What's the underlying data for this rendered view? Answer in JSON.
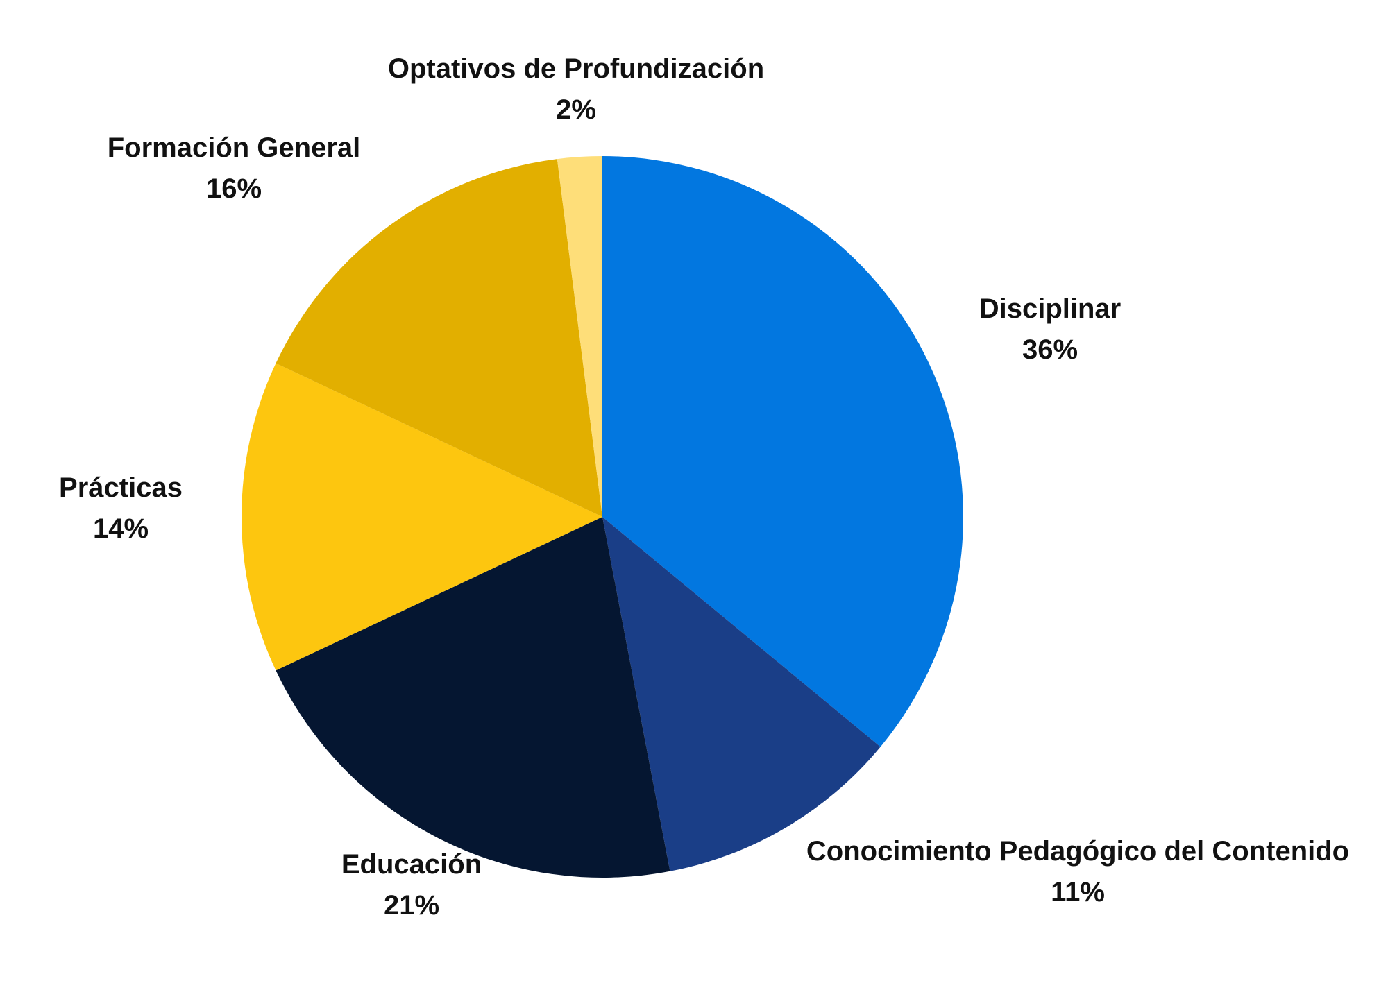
{
  "chart_data": {
    "type": "pie",
    "title": "",
    "start_angle_deg": 0,
    "direction": "clockwise",
    "slices": [
      {
        "label": "Disciplinar",
        "value": 36,
        "display": "36%",
        "color": "#0277E0"
      },
      {
        "label": "Conocimiento Pedagógico del Contenido",
        "value": 11,
        "display": "11%",
        "color": "#1A3E87"
      },
      {
        "label": "Educación",
        "value": 21,
        "display": "21%",
        "color": "#051631"
      },
      {
        "label": "Prácticas",
        "value": 14,
        "display": "14%",
        "color": "#FDC60F"
      },
      {
        "label": "Formación General",
        "value": 16,
        "display": "16%",
        "color": "#E2AF00"
      },
      {
        "label": "Optativos de Profundización",
        "value": 2,
        "display": "2%",
        "color": "#FEDE79"
      }
    ]
  }
}
